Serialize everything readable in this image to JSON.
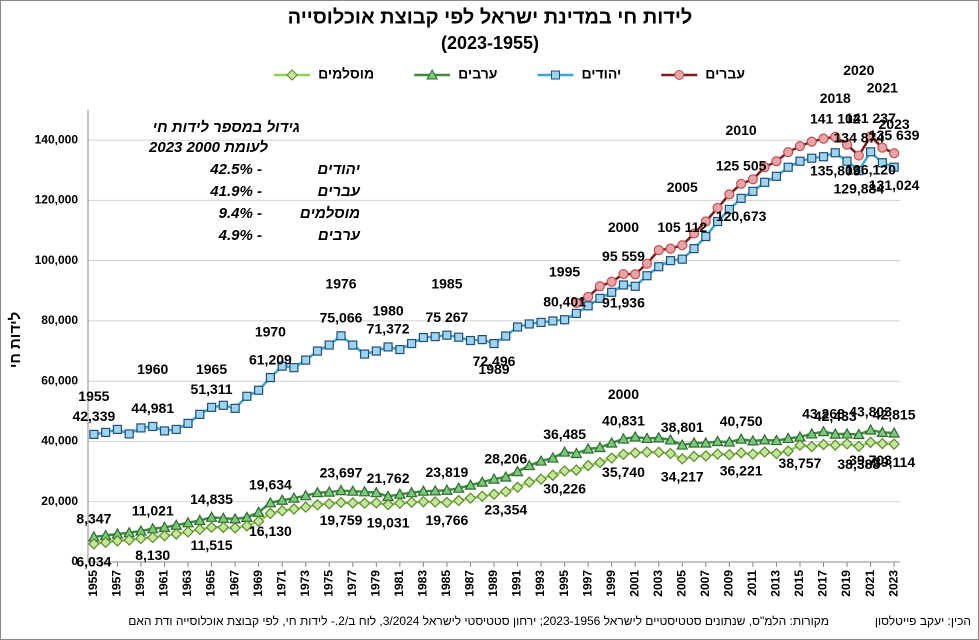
{
  "chart_data": {
    "type": "line",
    "title": "לידות חי במדינת ישראל לפי קבוצת אוכלוסייה",
    "subtitle": "(2023-1955)",
    "y_label": "לידות חי",
    "x": [
      1955,
      1956,
      1957,
      1958,
      1959,
      1960,
      1961,
      1962,
      1963,
      1964,
      1965,
      1966,
      1967,
      1968,
      1969,
      1970,
      1971,
      1972,
      1973,
      1974,
      1975,
      1976,
      1977,
      1978,
      1979,
      1980,
      1981,
      1982,
      1983,
      1984,
      1985,
      1986,
      1987,
      1988,
      1989,
      1990,
      1991,
      1992,
      1993,
      1994,
      1995,
      1996,
      1997,
      1998,
      1999,
      2000,
      2001,
      2002,
      2003,
      2004,
      2005,
      2006,
      2007,
      2008,
      2009,
      2010,
      2011,
      2012,
      2013,
      2014,
      2015,
      2016,
      2017,
      2018,
      2019,
      2020,
      2021,
      2022,
      2023
    ],
    "xlim": [
      1954.5,
      2023.5
    ],
    "xticks": [
      1955,
      1957,
      1959,
      1961,
      1963,
      1965,
      1967,
      1969,
      1971,
      1973,
      1975,
      1977,
      1979,
      1981,
      1983,
      1985,
      1987,
      1989,
      1991,
      1993,
      1995,
      1997,
      1999,
      2001,
      2003,
      2005,
      2007,
      2009,
      2011,
      2013,
      2015,
      2017,
      2019,
      2021,
      2023
    ],
    "ylim": [
      0,
      150000
    ],
    "yticks": [
      0,
      {
        "value": 20000,
        "label": "20,000"
      },
      {
        "value": 40000,
        "label": "40,000"
      },
      {
        "value": 60000,
        "label": "60,000"
      },
      {
        "value": 80000,
        "label": "80,000"
      },
      {
        "value": 100000,
        "label": "100,000"
      },
      {
        "value": 120000,
        "label": "120,000"
      },
      {
        "value": 140000,
        "label": "140,000"
      }
    ],
    "grid": true,
    "series": [
      {
        "name": "עברים",
        "color": "#7b1c1c",
        "marker": "circle",
        "marker_fill": "#e9a3ad",
        "marker_stroke": "#c0504d",
        "values": [
          null,
          null,
          null,
          null,
          null,
          null,
          null,
          null,
          null,
          null,
          null,
          null,
          null,
          null,
          null,
          null,
          null,
          null,
          null,
          null,
          null,
          null,
          null,
          null,
          null,
          null,
          null,
          null,
          null,
          null,
          null,
          null,
          null,
          null,
          null,
          null,
          null,
          null,
          null,
          null,
          null,
          86000,
          88000,
          91500,
          93000,
          95559,
          95500,
          99000,
          103500,
          104000,
          105112,
          109000,
          113000,
          117500,
          122000,
          125505,
          127000,
          131000,
          133000,
          136000,
          138000,
          139500,
          140500,
          141102,
          138500,
          134874,
          141237,
          137500,
          135639
        ],
        "value_labels": [
          null,
          null,
          null,
          null,
          null,
          null,
          null,
          null,
          null,
          null,
          null,
          null,
          null,
          null,
          null,
          null,
          null,
          null,
          null,
          null,
          null,
          null,
          null,
          null,
          null,
          null,
          null,
          null,
          null,
          null,
          null,
          null,
          null,
          null,
          null,
          null,
          null,
          null,
          null,
          null,
          null,
          null,
          null,
          null,
          null,
          "95 559",
          null,
          null,
          null,
          null,
          "105 112",
          null,
          null,
          null,
          null,
          "125 505",
          null,
          null,
          null,
          null,
          null,
          null,
          null,
          "141 102",
          null,
          "134 874",
          "141 237",
          null,
          "135 639"
        ]
      },
      {
        "name": "יהודים",
        "color": "#3aa6d8",
        "marker": "square",
        "marker_fill": "#9fd3ee",
        "marker_stroke": "#1f4e79",
        "values": [
          42339,
          43000,
          44000,
          42500,
          44500,
          44981,
          43500,
          44000,
          46000,
          49000,
          51311,
          52000,
          51000,
          55000,
          57000,
          61209,
          65000,
          64500,
          67000,
          70000,
          72000,
          75066,
          72000,
          69000,
          70000,
          71372,
          70500,
          72500,
          74500,
          74800,
          75267,
          74600,
          73500,
          73800,
          72496,
          75000,
          78000,
          79000,
          79500,
          80000,
          80401,
          82500,
          85000,
          87500,
          89500,
          91936,
          91500,
          95000,
          98000,
          100000,
          100500,
          104000,
          108000,
          113000,
          117000,
          120673,
          123000,
          126000,
          128000,
          131000,
          133000,
          134000,
          134500,
          135809,
          133000,
          129884,
          136120,
          132500,
          131024
        ],
        "value_labels": [
          "42,339",
          null,
          null,
          null,
          null,
          "44,981",
          null,
          null,
          null,
          null,
          "51,311",
          null,
          null,
          null,
          null,
          "61,209",
          null,
          null,
          null,
          null,
          null,
          "75,066",
          null,
          null,
          null,
          "71,372",
          null,
          null,
          null,
          null,
          "75 267",
          null,
          null,
          null,
          "72,496",
          null,
          null,
          null,
          null,
          null,
          "80,401",
          null,
          null,
          null,
          null,
          "91,936",
          null,
          null,
          null,
          null,
          null,
          null,
          null,
          null,
          null,
          "120,673",
          null,
          null,
          null,
          null,
          null,
          null,
          null,
          "135,809",
          null,
          "129,884",
          "136,120",
          null,
          "131,024"
        ]
      },
      {
        "name": "ערבים",
        "color": "#3d8b3d",
        "marker": "triangle",
        "marker_fill": "#7dc67d",
        "marker_stroke": "#2d6b2d",
        "values": [
          8347,
          8800,
          9300,
          9700,
          10300,
          11021,
          11500,
          12200,
          13000,
          13800,
          14835,
          14500,
          14300,
          14800,
          16500,
          19634,
          20500,
          21200,
          22000,
          23000,
          23200,
          23697,
          23500,
          23300,
          23000,
          21762,
          22500,
          23000,
          23500,
          23600,
          23819,
          24500,
          25500,
          26500,
          27500,
          28206,
          30000,
          32000,
          33500,
          34500,
          36485,
          36000,
          37500,
          38000,
          39500,
          40831,
          41500,
          41000,
          41200,
          40500,
          38801,
          39500,
          39500,
          40000,
          39800,
          40750,
          40200,
          40500,
          40300,
          41000,
          41500,
          42500,
          43268,
          42433,
          42500,
          42300,
          43803,
          43000,
          42815
        ],
        "value_labels": [
          "8,347",
          null,
          null,
          null,
          null,
          "11,021",
          null,
          null,
          null,
          null,
          "14,835",
          null,
          null,
          null,
          null,
          "19,634",
          null,
          null,
          null,
          null,
          null,
          "23,697",
          null,
          null,
          null,
          "21,762",
          null,
          null,
          null,
          null,
          "23,819",
          null,
          null,
          null,
          null,
          "28,206",
          null,
          null,
          null,
          null,
          "36,485",
          null,
          null,
          null,
          null,
          "40,831",
          null,
          null,
          null,
          null,
          "38,801",
          null,
          null,
          null,
          null,
          "40,750",
          null,
          null,
          null,
          null,
          null,
          null,
          "43,268",
          "42,433",
          null,
          null,
          "43,803",
          null,
          "42,815"
        ]
      },
      {
        "name": "מוסלמים",
        "color": "#92d050",
        "marker": "diamond",
        "marker_fill": "#c5e69d",
        "marker_stroke": "#5b8a2a",
        "values": [
          6034,
          6500,
          7000,
          7300,
          7800,
          8130,
          8700,
          9300,
          10000,
          10800,
          11515,
          11500,
          11300,
          12000,
          13500,
          16130,
          17000,
          17600,
          18200,
          19000,
          19300,
          19759,
          19600,
          19500,
          19600,
          19031,
          19500,
          19800,
          20000,
          19900,
          19766,
          20400,
          21200,
          21800,
          22500,
          23354,
          24800,
          26500,
          27500,
          28800,
          30226,
          30500,
          32000,
          33000,
          34500,
          35740,
          36200,
          36500,
          36400,
          36000,
          34217,
          35000,
          35200,
          35800,
          35600,
          36221,
          35800,
          36500,
          36000,
          36800,
          38757,
          38300,
          39000,
          38800,
          39200,
          38388,
          39703,
          39300,
          39114
        ],
        "value_labels": [
          "6,034",
          null,
          null,
          null,
          null,
          "8,130",
          null,
          null,
          null,
          null,
          "11,515",
          null,
          null,
          null,
          null,
          "16,130",
          null,
          null,
          null,
          null,
          null,
          "19,759",
          null,
          null,
          null,
          "19,031",
          null,
          null,
          null,
          null,
          "19,766",
          null,
          null,
          null,
          null,
          "23,354",
          null,
          null,
          null,
          null,
          "30,226",
          null,
          null,
          null,
          null,
          "35,740",
          null,
          null,
          null,
          null,
          "34,217",
          null,
          null,
          null,
          null,
          "36,221",
          null,
          null,
          null,
          null,
          "38,757",
          null,
          null,
          null,
          null,
          "38,388",
          "39,703",
          null,
          "39,114"
        ]
      }
    ],
    "annotations": [
      {
        "text": "1955",
        "x": 1955,
        "y": 54700
      },
      {
        "text": "1960",
        "x": 1960,
        "y": 63700
      },
      {
        "text": "1965",
        "x": 1965,
        "y": 63700
      },
      {
        "text": "1970",
        "x": 1970,
        "y": 76000
      },
      {
        "text": "1976",
        "x": 1976,
        "y": 92000
      },
      {
        "text": "1980",
        "x": 1980,
        "y": 83000
      },
      {
        "text": "1985",
        "x": 1985,
        "y": 92000
      },
      {
        "text": "1989",
        "x": 1989,
        "y": 63700
      },
      {
        "text": "1995",
        "x": 1995,
        "y": 96000
      },
      {
        "text": "2000",
        "x": 2000,
        "y": 110800
      },
      {
        "text": "2005",
        "x": 2005,
        "y": 124000
      },
      {
        "text": "2010",
        "x": 2010,
        "y": 143000
      },
      {
        "text": "2018",
        "x": 2018,
        "y": 153600
      },
      {
        "text": "2020",
        "x": 2020,
        "y": 162900
      },
      {
        "text": "2021",
        "x": 2022,
        "y": 157000
      },
      {
        "text": "2023",
        "x": 2023,
        "y": 145000
      },
      {
        "text": "2000",
        "x": 2000,
        "y": 55400
      }
    ],
    "growth_box": {
      "title": "גידול במספר לידות חי",
      "subtitle": "2023 לעומת 2000",
      "rows": [
        {
          "group": "יהודים",
          "value": "42.5% -"
        },
        {
          "group": "עברים",
          "value": "41.9% -"
        },
        {
          "group": "מוסלמים",
          "value": "9.4% -"
        },
        {
          "group": "ערבים",
          "value": "4.9% -"
        }
      ]
    },
    "source": "מקורות: הלמ\"ס, שנתונים סטטיסטיים לישראל 2023-1956; ירחון סטטיסטי לישראל 3/2024, לוח ב/2.- לידות חי, לפי קבוצת אוכלוסייה ודת האם",
    "author": "הכין: יעקב פייטלסון"
  }
}
